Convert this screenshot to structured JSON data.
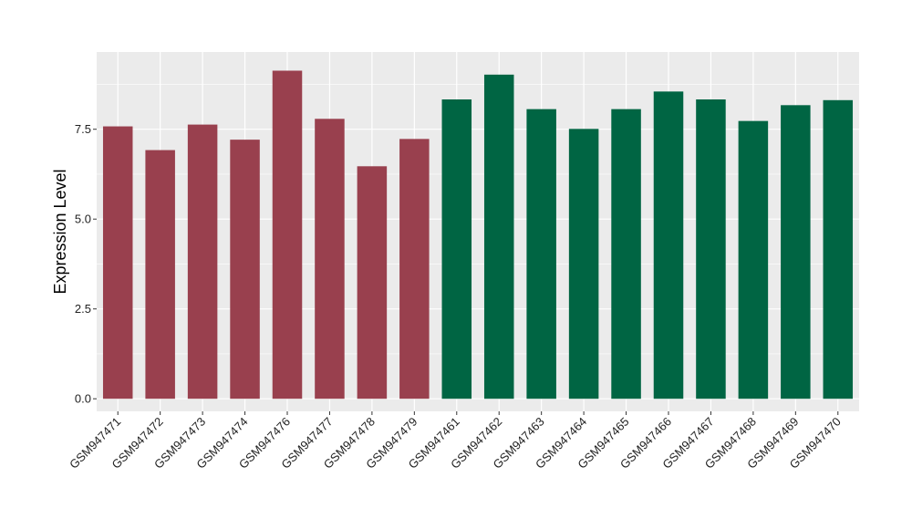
{
  "chart_data": {
    "type": "bar",
    "title": "",
    "xlabel": "",
    "ylabel": "Expression Level",
    "ylim": [
      -0.35,
      9.65
    ],
    "yticks": [
      0.0,
      2.5,
      5.0,
      7.5
    ],
    "ytick_labels": [
      "0.0",
      "2.5",
      "5.0",
      "7.5"
    ],
    "grid": true,
    "legend": "none",
    "categories": [
      "GSM947471",
      "GSM947472",
      "GSM947473",
      "GSM947474",
      "GSM947476",
      "GSM947477",
      "GSM947478",
      "GSM947479",
      "GSM947461",
      "GSM947462",
      "GSM947463",
      "GSM947464",
      "GSM947465",
      "GSM947466",
      "GSM947467",
      "GSM947468",
      "GSM947469",
      "GSM947470"
    ],
    "values": [
      7.58,
      6.92,
      7.63,
      7.21,
      9.13,
      7.79,
      6.47,
      7.23,
      8.33,
      9.02,
      8.06,
      7.51,
      8.06,
      8.55,
      8.33,
      7.73,
      8.17,
      8.31
    ],
    "bar_colors": [
      "#99404e",
      "#99404e",
      "#99404e",
      "#99404e",
      "#99404e",
      "#99404e",
      "#99404e",
      "#99404e",
      "#006543",
      "#006543",
      "#006543",
      "#006543",
      "#006543",
      "#006543",
      "#006543",
      "#006543",
      "#006543",
      "#006543"
    ],
    "panel_background": "#ebebeb",
    "grid_color": "#ffffff"
  }
}
